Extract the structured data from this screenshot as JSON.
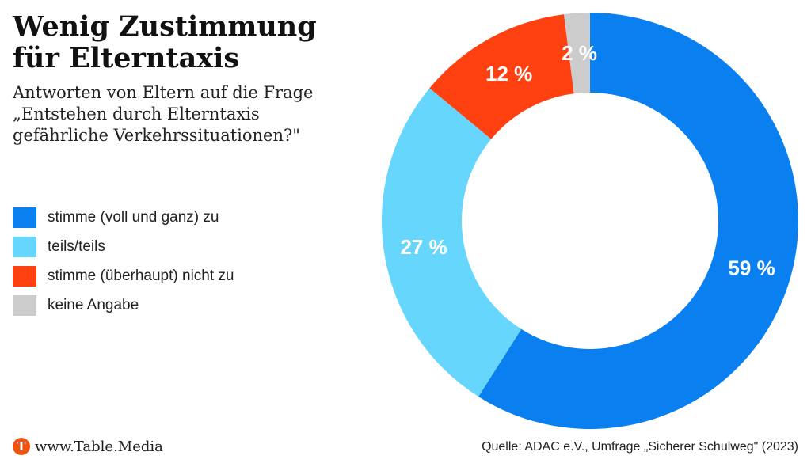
{
  "title": [
    "Wenig Zustimmung",
    "für Elterntaxis"
  ],
  "subtitle": [
    "Antworten von Eltern auf die Frage",
    "„Entstehen durch Elterntaxis",
    "gefährliche Verkehrssituationen?\""
  ],
  "footer": {
    "logo_letter": "T",
    "logo_text": "www.Table.Media",
    "source": "Quelle: ADAC e.V., Umfrage „Sicherer Schulweg\" (2023)"
  },
  "chart_data": {
    "type": "pie",
    "donut": true,
    "legend_position": "left",
    "categories": [
      "stimme (voll und ganz) zu",
      "teils/teils",
      "stimme (überhaupt) nicht zu",
      "keine Angabe"
    ],
    "values": [
      59,
      27,
      12,
      2
    ],
    "data_labels": [
      "59 %",
      "27 %",
      "12 %",
      "2 %"
    ],
    "colors": [
      "#0a80f0",
      "#66d6fc",
      "#ff4112",
      "#cccccc"
    ]
  }
}
